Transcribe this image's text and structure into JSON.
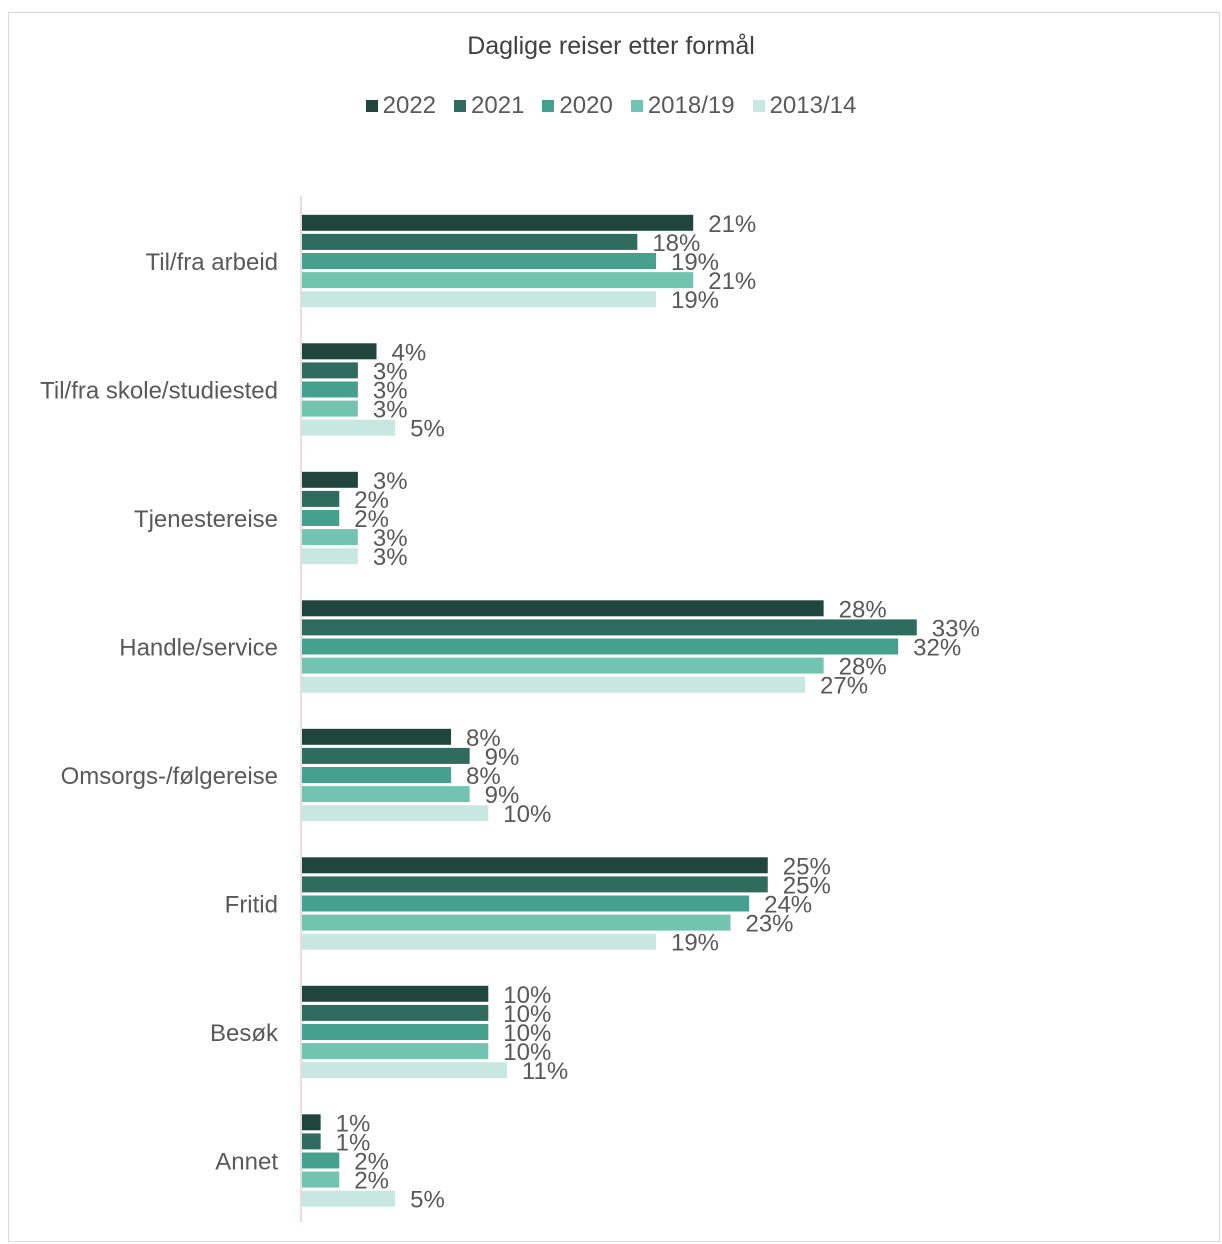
{
  "chart_data": {
    "type": "bar",
    "orientation": "horizontal",
    "title": "Daglige reiser etter formål",
    "categories": [
      "Til/fra arbeid",
      "Til/fra skole/studiested",
      "Tjenestereise",
      "Handle/service",
      "Omsorgs-/følgereise",
      "Fritid",
      "Besøk",
      "Annet"
    ],
    "series": [
      {
        "name": "2022",
        "color": "#1f453d",
        "values": [
          21,
          4,
          3,
          28,
          8,
          25,
          10,
          1
        ]
      },
      {
        "name": "2021",
        "color": "#2f6b5e",
        "values": [
          18,
          3,
          2,
          33,
          9,
          25,
          10,
          1
        ]
      },
      {
        "name": "2020",
        "color": "#45a08d",
        "values": [
          19,
          3,
          2,
          32,
          8,
          24,
          10,
          2
        ]
      },
      {
        "name": "2018/19",
        "color": "#72c4b1",
        "values": [
          21,
          3,
          3,
          28,
          9,
          23,
          10,
          2
        ]
      },
      {
        "name": "2013/14",
        "color": "#c8e7e0",
        "values": [
          19,
          5,
          3,
          27,
          10,
          19,
          11,
          5
        ]
      }
    ],
    "value_suffix": "%",
    "legend_position": "top",
    "grid": false
  }
}
